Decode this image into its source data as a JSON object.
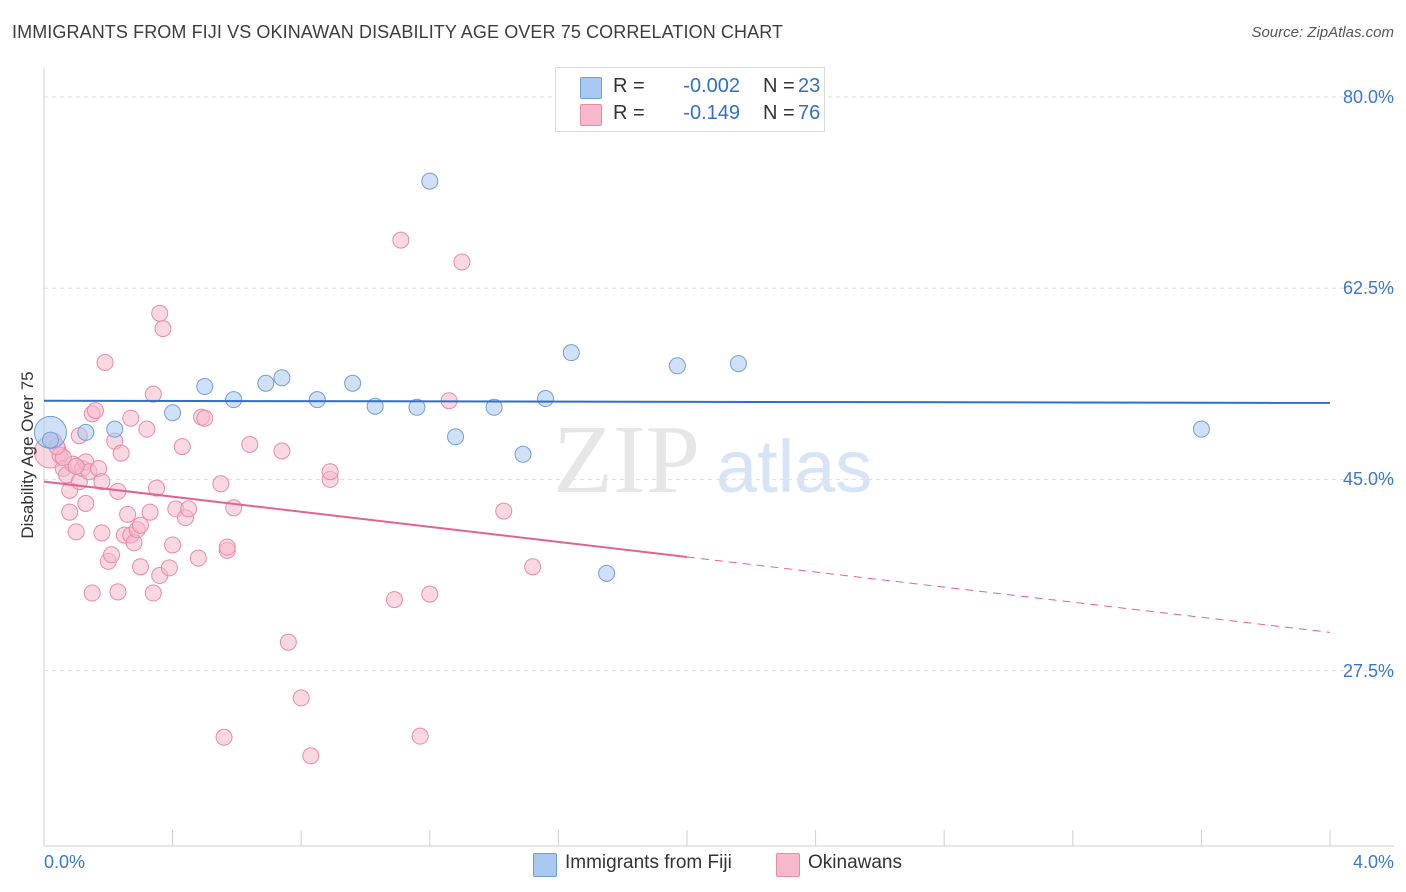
{
  "header": {
    "title": "IMMIGRANTS FROM FIJI VS OKINAWAN DISABILITY AGE OVER 75 CORRELATION CHART",
    "source": "Source: ZipAtlas.com"
  },
  "legend": {
    "rows": [
      {
        "r_label": "R =",
        "r_value": "-0.002",
        "n_label": "N =",
        "n_value": "23"
      },
      {
        "r_label": "R =",
        "r_value": "-0.149",
        "n_label": "N =",
        "n_value": "76"
      }
    ]
  },
  "watermark": {
    "part1": "ZIP",
    "part2": "atlas"
  },
  "colors": {
    "fiji_fill": "#a9c8f0",
    "fiji_stroke": "#6f9fd8",
    "fiji_line": "#2e6fcc",
    "oki_fill": "#f6b8cb",
    "oki_stroke": "#e98aa7",
    "oki_line": "#e4628f",
    "tick_text": "#3a78cc",
    "grid": "#dedede"
  },
  "chart_data": {
    "type": "scatter",
    "title": "IMMIGRANTS FROM FIJI VS OKINAWAN DISABILITY AGE OVER 75 CORRELATION CHART",
    "xlabel": "",
    "ylabel": "Disability Age Over 75",
    "xlim": [
      0.0,
      4.0
    ],
    "ylim": [
      10.0,
      82.0
    ],
    "y_ticks": [
      {
        "value": 80.0,
        "label": "80.0%"
      },
      {
        "value": 62.5,
        "label": "62.5%"
      },
      {
        "value": 45.0,
        "label": "45.0%"
      },
      {
        "value": 27.5,
        "label": "27.5%"
      }
    ],
    "x_tick_labels": [
      {
        "value": 0.0,
        "label": "0.0%"
      },
      {
        "value": 4.0,
        "label": "4.0%"
      }
    ],
    "grid": true,
    "legend_position": "top-center",
    "series": [
      {
        "name": "Immigrants from Fiji",
        "color": "#a9c8f0",
        "points": [
          {
            "x": 0.02,
            "y": 49.3,
            "big": true
          },
          {
            "x": 0.13,
            "y": 49.3
          },
          {
            "x": 0.22,
            "y": 49.6
          },
          {
            "x": 0.4,
            "y": 51.1
          },
          {
            "x": 0.5,
            "y": 53.5
          },
          {
            "x": 0.59,
            "y": 52.3
          },
          {
            "x": 0.69,
            "y": 53.8
          },
          {
            "x": 0.74,
            "y": 54.3
          },
          {
            "x": 0.85,
            "y": 52.3
          },
          {
            "x": 0.96,
            "y": 53.8
          },
          {
            "x": 1.03,
            "y": 51.7
          },
          {
            "x": 1.16,
            "y": 51.6
          },
          {
            "x": 1.28,
            "y": 48.9
          },
          {
            "x": 1.4,
            "y": 51.6
          },
          {
            "x": 1.49,
            "y": 47.3
          },
          {
            "x": 1.56,
            "y": 52.4
          },
          {
            "x": 1.2,
            "y": 72.3
          },
          {
            "x": 1.64,
            "y": 56.6
          },
          {
            "x": 1.97,
            "y": 55.4
          },
          {
            "x": 2.16,
            "y": 55.6
          },
          {
            "x": 1.75,
            "y": 36.4
          },
          {
            "x": 3.6,
            "y": 49.6
          },
          {
            "x": 0.02,
            "y": 48.6
          }
        ],
        "trend": {
          "x1": 0.0,
          "y1": 52.2,
          "x2": 4.0,
          "y2": 52.0
        }
      },
      {
        "name": "Okinawans",
        "color": "#f6b8cb",
        "points": [
          {
            "x": 0.02,
            "y": 47.5,
            "big": true
          },
          {
            "x": 0.03,
            "y": 48.5
          },
          {
            "x": 0.05,
            "y": 47.2
          },
          {
            "x": 0.06,
            "y": 46.0
          },
          {
            "x": 0.07,
            "y": 45.4
          },
          {
            "x": 0.08,
            "y": 44.0
          },
          {
            "x": 0.08,
            "y": 42.0
          },
          {
            "x": 0.09,
            "y": 46.4
          },
          {
            "x": 0.1,
            "y": 40.2
          },
          {
            "x": 0.11,
            "y": 44.8
          },
          {
            "x": 0.11,
            "y": 49.0
          },
          {
            "x": 0.12,
            "y": 46.0
          },
          {
            "x": 0.13,
            "y": 46.6
          },
          {
            "x": 0.13,
            "y": 42.8
          },
          {
            "x": 0.14,
            "y": 45.7
          },
          {
            "x": 0.15,
            "y": 34.6
          },
          {
            "x": 0.15,
            "y": 51.0
          },
          {
            "x": 0.16,
            "y": 51.3
          },
          {
            "x": 0.17,
            "y": 46.0
          },
          {
            "x": 0.18,
            "y": 40.1
          },
          {
            "x": 0.18,
            "y": 44.8
          },
          {
            "x": 0.19,
            "y": 55.7
          },
          {
            "x": 0.2,
            "y": 37.5
          },
          {
            "x": 0.21,
            "y": 38.1
          },
          {
            "x": 0.22,
            "y": 48.5
          },
          {
            "x": 0.23,
            "y": 43.9
          },
          {
            "x": 0.23,
            "y": 34.7
          },
          {
            "x": 0.24,
            "y": 47.4
          },
          {
            "x": 0.25,
            "y": 39.9
          },
          {
            "x": 0.26,
            "y": 41.8
          },
          {
            "x": 0.27,
            "y": 50.6
          },
          {
            "x": 0.27,
            "y": 39.9
          },
          {
            "x": 0.28,
            "y": 39.2
          },
          {
            "x": 0.29,
            "y": 40.4
          },
          {
            "x": 0.3,
            "y": 37.0
          },
          {
            "x": 0.3,
            "y": 40.8
          },
          {
            "x": 0.32,
            "y": 49.6
          },
          {
            "x": 0.34,
            "y": 52.8
          },
          {
            "x": 0.34,
            "y": 34.6
          },
          {
            "x": 0.35,
            "y": 44.2
          },
          {
            "x": 0.36,
            "y": 36.2
          },
          {
            "x": 0.36,
            "y": 60.2
          },
          {
            "x": 0.37,
            "y": 58.8
          },
          {
            "x": 0.39,
            "y": 36.9
          },
          {
            "x": 0.4,
            "y": 39.0
          },
          {
            "x": 0.41,
            "y": 42.3
          },
          {
            "x": 0.43,
            "y": 48.0
          },
          {
            "x": 0.44,
            "y": 41.5
          },
          {
            "x": 0.45,
            "y": 42.3
          },
          {
            "x": 0.48,
            "y": 37.8
          },
          {
            "x": 0.49,
            "y": 50.7
          },
          {
            "x": 0.5,
            "y": 50.6
          },
          {
            "x": 0.55,
            "y": 44.6
          },
          {
            "x": 0.56,
            "y": 21.4
          },
          {
            "x": 0.57,
            "y": 38.5
          },
          {
            "x": 0.57,
            "y": 38.8
          },
          {
            "x": 0.64,
            "y": 48.2
          },
          {
            "x": 0.74,
            "y": 47.6
          },
          {
            "x": 0.76,
            "y": 30.1
          },
          {
            "x": 0.8,
            "y": 25.0
          },
          {
            "x": 0.83,
            "y": 19.7
          },
          {
            "x": 0.89,
            "y": 45.0
          },
          {
            "x": 0.89,
            "y": 45.7
          },
          {
            "x": 0.59,
            "y": 42.4
          },
          {
            "x": 1.09,
            "y": 34.0
          },
          {
            "x": 1.11,
            "y": 66.9
          },
          {
            "x": 1.17,
            "y": 21.5
          },
          {
            "x": 1.2,
            "y": 34.5
          },
          {
            "x": 1.26,
            "y": 52.2
          },
          {
            "x": 1.3,
            "y": 64.9
          },
          {
            "x": 1.43,
            "y": 42.1
          },
          {
            "x": 1.52,
            "y": 37.0
          },
          {
            "x": 0.33,
            "y": 42.0
          },
          {
            "x": 0.06,
            "y": 47.0
          },
          {
            "x": 0.1,
            "y": 46.2
          },
          {
            "x": 0.04,
            "y": 48.0
          }
        ],
        "trend_solid": {
          "x1": 0.0,
          "y1": 44.8,
          "x2": 2.0,
          "y2": 37.9
        },
        "trend_dashed": {
          "x1": 2.0,
          "y1": 37.9,
          "x2": 4.0,
          "y2": 31.0
        }
      }
    ]
  },
  "bottom_legend": {
    "fiji_label": "Immigrants from Fiji",
    "oki_label": "Okinawans"
  }
}
